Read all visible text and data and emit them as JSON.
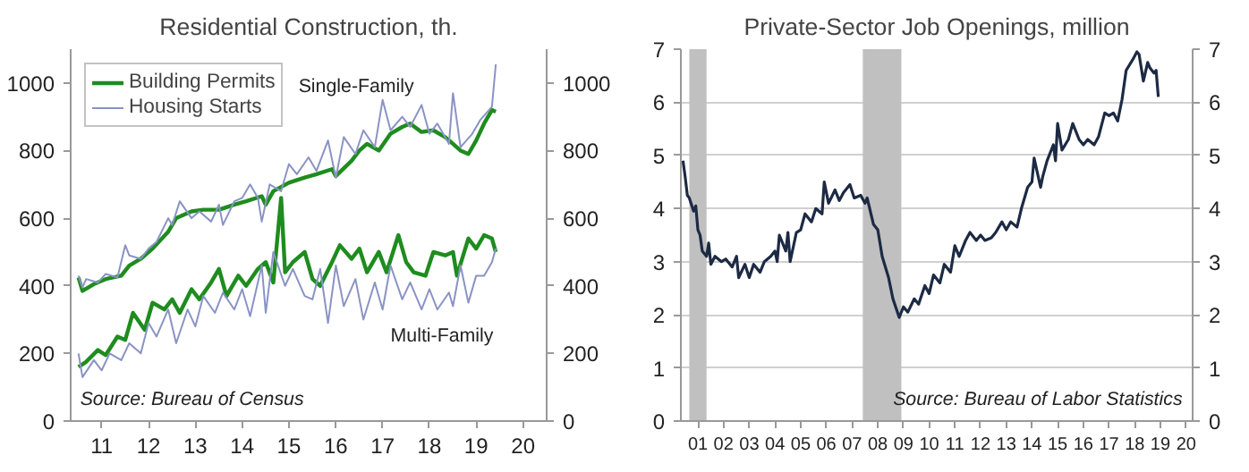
{
  "chart_data": [
    {
      "type": "line",
      "title": "Residential Construction, th.",
      "legend": "top left",
      "grid": false,
      "xlim": [
        "2010-11",
        "2021-01"
      ],
      "xticks": [
        {
          "value": "2011-07",
          "label": "11"
        },
        {
          "value": "2012-07",
          "label": "12"
        },
        {
          "value": "2013-07",
          "label": "13"
        },
        {
          "value": "2014-07",
          "label": "14"
        },
        {
          "value": "2015-07",
          "label": "15"
        },
        {
          "value": "2016-07",
          "label": "16"
        },
        {
          "value": "2017-07",
          "label": "17"
        },
        {
          "value": "2018-07",
          "label": "18"
        },
        {
          "value": "2019-07",
          "label": "19"
        },
        {
          "value": "2020-07",
          "label": "20"
        }
      ],
      "ylim": [
        0,
        1100
      ],
      "yticks": [
        0,
        200,
        400,
        600,
        800,
        1000
      ],
      "y2lim": [
        0,
        1100
      ],
      "y2ticks": [
        0,
        200,
        400,
        600,
        800,
        1000
      ],
      "annotations": [
        "Single-Family",
        "Multi-Family",
        "Source: Bureau of Census"
      ],
      "series": [
        {
          "name": "Building Permits",
          "color": "#1e8c1e",
          "x": [
            "2011-01",
            "2011-02",
            "2011-05",
            "2011-08",
            "2011-12",
            "2012-02",
            "2012-05",
            "2012-08",
            "2012-12",
            "2013-02",
            "2013-06",
            "2013-09",
            "2014-01",
            "2014-05",
            "2014-08",
            "2014-12",
            "2015-01",
            "2015-03",
            "2015-07",
            "2015-11",
            "2016-02",
            "2016-06",
            "2016-07",
            "2016-11",
            "2017-01",
            "2017-03",
            "2017-06",
            "2017-09",
            "2017-12",
            "2018-02",
            "2018-05",
            "2018-08",
            "2018-11",
            "2019-01",
            "2019-03",
            "2019-05",
            "2019-07",
            "2019-09",
            "2019-11",
            "2019-12"
          ],
          "values": [
            425,
            385,
            405,
            420,
            430,
            460,
            480,
            510,
            560,
            600,
            620,
            625,
            625,
            640,
            650,
            665,
            640,
            680,
            705,
            720,
            730,
            745,
            725,
            770,
            800,
            820,
            800,
            850,
            870,
            880,
            855,
            860,
            840,
            820,
            800,
            790,
            830,
            880,
            920,
            915
          ]
        },
        {
          "name": "Housing Starts",
          "color": "#8a93c4",
          "x": [
            "2011-01",
            "2011-02",
            "2011-03",
            "2011-06",
            "2011-08",
            "2011-11",
            "2012-01",
            "2012-02",
            "2012-05",
            "2012-07",
            "2012-09",
            "2012-12",
            "2013-01",
            "2013-03",
            "2013-06",
            "2013-08",
            "2013-11",
            "2014-01",
            "2014-02",
            "2014-05",
            "2014-07",
            "2014-09",
            "2014-11",
            "2014-12",
            "2015-02",
            "2015-05",
            "2015-07",
            "2015-09",
            "2015-12",
            "2016-02",
            "2016-05",
            "2016-07",
            "2016-09",
            "2016-12",
            "2017-02",
            "2017-05",
            "2017-07",
            "2017-09",
            "2017-12",
            "2018-02",
            "2018-05",
            "2018-07",
            "2018-09",
            "2018-12",
            "2019-01",
            "2019-03",
            "2019-06",
            "2019-08",
            "2019-11",
            "2019-12"
          ],
          "values": [
            430,
            395,
            420,
            410,
            435,
            425,
            520,
            490,
            480,
            510,
            530,
            600,
            580,
            650,
            600,
            620,
            590,
            640,
            580,
            650,
            660,
            700,
            660,
            590,
            700,
            680,
            760,
            730,
            780,
            740,
            830,
            720,
            840,
            790,
            860,
            810,
            950,
            860,
            900,
            870,
            935,
            850,
            880,
            820,
            970,
            810,
            850,
            890,
            930,
            1055
          ]
        },
        {
          "color": "#1e8c1e",
          "x": [
            "2011-01",
            "2011-03",
            "2011-06",
            "2011-08",
            "2011-11",
            "2012-01",
            "2012-03",
            "2012-06",
            "2012-08",
            "2012-11",
            "2013-01",
            "2013-03",
            "2013-06",
            "2013-08",
            "2013-11",
            "2014-01",
            "2014-03",
            "2014-06",
            "2014-08",
            "2014-11",
            "2015-01",
            "2015-03",
            "2015-05",
            "2015-06",
            "2015-08",
            "2015-11",
            "2016-01",
            "2016-03",
            "2016-06",
            "2016-08",
            "2016-11",
            "2017-01",
            "2017-03",
            "2017-06",
            "2017-08",
            "2017-11",
            "2018-01",
            "2018-03",
            "2018-06",
            "2018-08",
            "2018-11",
            "2019-01",
            "2019-02",
            "2019-05",
            "2019-07",
            "2019-09",
            "2019-11",
            "2019-12"
          ],
          "values": [
            160,
            175,
            210,
            195,
            250,
            240,
            320,
            270,
            350,
            330,
            360,
            320,
            390,
            360,
            410,
            450,
            370,
            430,
            400,
            450,
            470,
            410,
            660,
            440,
            470,
            500,
            420,
            400,
            470,
            520,
            480,
            510,
            440,
            500,
            440,
            550,
            470,
            440,
            430,
            500,
            490,
            500,
            430,
            540,
            510,
            550,
            540,
            500
          ]
        },
        {
          "color": "#8a93c4",
          "x": [
            "2011-01",
            "2011-02",
            "2011-05",
            "2011-07",
            "2011-09",
            "2011-12",
            "2012-02",
            "2012-05",
            "2012-07",
            "2012-09",
            "2012-12",
            "2013-02",
            "2013-05",
            "2013-07",
            "2013-09",
            "2013-12",
            "2014-02",
            "2014-05",
            "2014-07",
            "2014-09",
            "2014-12",
            "2015-01",
            "2015-03",
            "2015-06",
            "2015-08",
            "2015-11",
            "2016-01",
            "2016-03",
            "2016-05",
            "2016-07",
            "2016-09",
            "2016-12",
            "2017-02",
            "2017-05",
            "2017-07",
            "2017-09",
            "2017-12",
            "2018-02",
            "2018-05",
            "2018-07",
            "2018-09",
            "2018-12",
            "2019-01",
            "2019-03",
            "2019-05",
            "2019-07",
            "2019-09",
            "2019-11",
            "2019-12"
          ],
          "values": [
            200,
            130,
            180,
            150,
            200,
            180,
            230,
            200,
            290,
            250,
            330,
            230,
            330,
            280,
            370,
            320,
            380,
            330,
            390,
            310,
            460,
            320,
            500,
            400,
            450,
            370,
            360,
            450,
            290,
            460,
            340,
            420,
            300,
            410,
            330,
            460,
            360,
            410,
            330,
            390,
            330,
            380,
            340,
            460,
            350,
            430,
            430,
            470,
            510
          ]
        }
      ]
    },
    {
      "type": "line",
      "title": "Private-Sector Job Openings, million",
      "grid": "y",
      "xlim": [
        "2000-11",
        "2020-10"
      ],
      "xticks": [
        {
          "value": "2001-07",
          "label": "01"
        },
        {
          "value": "2002-07",
          "label": "02"
        },
        {
          "value": "2003-07",
          "label": "03"
        },
        {
          "value": "2004-07",
          "label": "04"
        },
        {
          "value": "2005-07",
          "label": "05"
        },
        {
          "value": "2006-07",
          "label": "06"
        },
        {
          "value": "2007-07",
          "label": "07"
        },
        {
          "value": "2008-07",
          "label": "08"
        },
        {
          "value": "2009-07",
          "label": "09"
        },
        {
          "value": "2010-07",
          "label": "10"
        },
        {
          "value": "2011-07",
          "label": "11"
        },
        {
          "value": "2012-07",
          "label": "12"
        },
        {
          "value": "2013-07",
          "label": "13"
        },
        {
          "value": "2014-07",
          "label": "14"
        },
        {
          "value": "2015-07",
          "label": "15"
        },
        {
          "value": "2016-07",
          "label": "16"
        },
        {
          "value": "2017-07",
          "label": "17"
        },
        {
          "value": "2018-07",
          "label": "18"
        },
        {
          "value": "2019-07",
          "label": "19"
        },
        {
          "value": "2020-07",
          "label": "20"
        }
      ],
      "ylim": [
        0,
        7
      ],
      "yticks": [
        0,
        1,
        2,
        3,
        4,
        5,
        6,
        7
      ],
      "y2lim": [
        0,
        7
      ],
      "y2ticks": [
        0,
        1,
        2,
        3,
        4,
        5,
        6,
        7
      ],
      "bands": [
        {
          "axis": "x",
          "from": "2001-03",
          "to": "2001-11",
          "color": "#c0c0c0"
        },
        {
          "axis": "x",
          "from": "2007-12",
          "to": "2009-06",
          "color": "#c0c0c0"
        }
      ],
      "annotations": [
        "Source: Bureau of Labor Statistics"
      ],
      "series": [
        {
          "color": "#1c2a44",
          "x": [
            "2000-12",
            "2001-01",
            "2001-02",
            "2001-03",
            "2001-05",
            "2001-06",
            "2001-07",
            "2001-08",
            "2001-09",
            "2001-11",
            "2001-12",
            "2002-01",
            "2002-03",
            "2002-06",
            "2002-08",
            "2002-11",
            "2003-01",
            "2003-02",
            "2003-05",
            "2003-07",
            "2003-09",
            "2003-12",
            "2004-02",
            "2004-05",
            "2004-07",
            "2004-08",
            "2004-09",
            "2004-12",
            "2005-01",
            "2005-02",
            "2005-05",
            "2005-07",
            "2005-09",
            "2005-12",
            "2006-02",
            "2006-05",
            "2006-06",
            "2006-08",
            "2006-11",
            "2007-01",
            "2007-03",
            "2007-06",
            "2007-08",
            "2007-11",
            "2008-01",
            "2008-02",
            "2008-05",
            "2008-07",
            "2008-09",
            "2008-12",
            "2009-02",
            "2009-05",
            "2009-07",
            "2009-09",
            "2009-12",
            "2010-02",
            "2010-05",
            "2010-07",
            "2010-09",
            "2010-12",
            "2011-02",
            "2011-05",
            "2011-07",
            "2011-09",
            "2011-12",
            "2012-02",
            "2012-05",
            "2012-07",
            "2012-09",
            "2012-12",
            "2013-02",
            "2013-05",
            "2013-07",
            "2013-09",
            "2013-12",
            "2014-02",
            "2014-05",
            "2014-07",
            "2014-08",
            "2014-11",
            "2014-12",
            "2015-02",
            "2015-05",
            "2015-06",
            "2015-07",
            "2015-09",
            "2015-12",
            "2016-02",
            "2016-05",
            "2016-07",
            "2016-09",
            "2016-12",
            "2017-02",
            "2017-05",
            "2017-07",
            "2017-09",
            "2017-11",
            "2018-01",
            "2018-03",
            "2018-06",
            "2018-08",
            "2018-09",
            "2018-11",
            "2019-01",
            "2019-02",
            "2019-04",
            "2019-05",
            "2019-06"
          ],
          "values": [
            4.9,
            4.6,
            4.25,
            4.2,
            3.95,
            4.05,
            3.6,
            3.5,
            3.2,
            3.1,
            3.35,
            2.95,
            3.1,
            3.0,
            3.05,
            2.9,
            3.1,
            2.7,
            2.95,
            2.7,
            2.95,
            2.8,
            3.0,
            3.1,
            3.2,
            3.0,
            3.5,
            3.2,
            3.55,
            3.0,
            3.55,
            3.6,
            3.9,
            3.75,
            4.0,
            3.9,
            4.5,
            4.1,
            4.35,
            4.15,
            4.3,
            4.45,
            4.2,
            4.25,
            4.1,
            4.2,
            3.7,
            3.6,
            3.1,
            2.7,
            2.3,
            1.95,
            2.15,
            2.05,
            2.3,
            2.2,
            2.55,
            2.4,
            2.75,
            2.6,
            2.95,
            2.8,
            3.3,
            3.1,
            3.4,
            3.55,
            3.4,
            3.5,
            3.4,
            3.45,
            3.55,
            3.75,
            3.6,
            3.75,
            3.65,
            4.0,
            4.4,
            4.5,
            4.95,
            4.4,
            4.6,
            4.9,
            5.2,
            4.9,
            5.6,
            5.1,
            5.3,
            5.6,
            5.3,
            5.2,
            5.3,
            5.2,
            5.35,
            5.8,
            5.75,
            5.8,
            5.65,
            6.05,
            6.6,
            6.8,
            6.95,
            6.9,
            6.4,
            6.75,
            6.65,
            6.55,
            6.6,
            6.1
          ]
        }
      ]
    }
  ]
}
